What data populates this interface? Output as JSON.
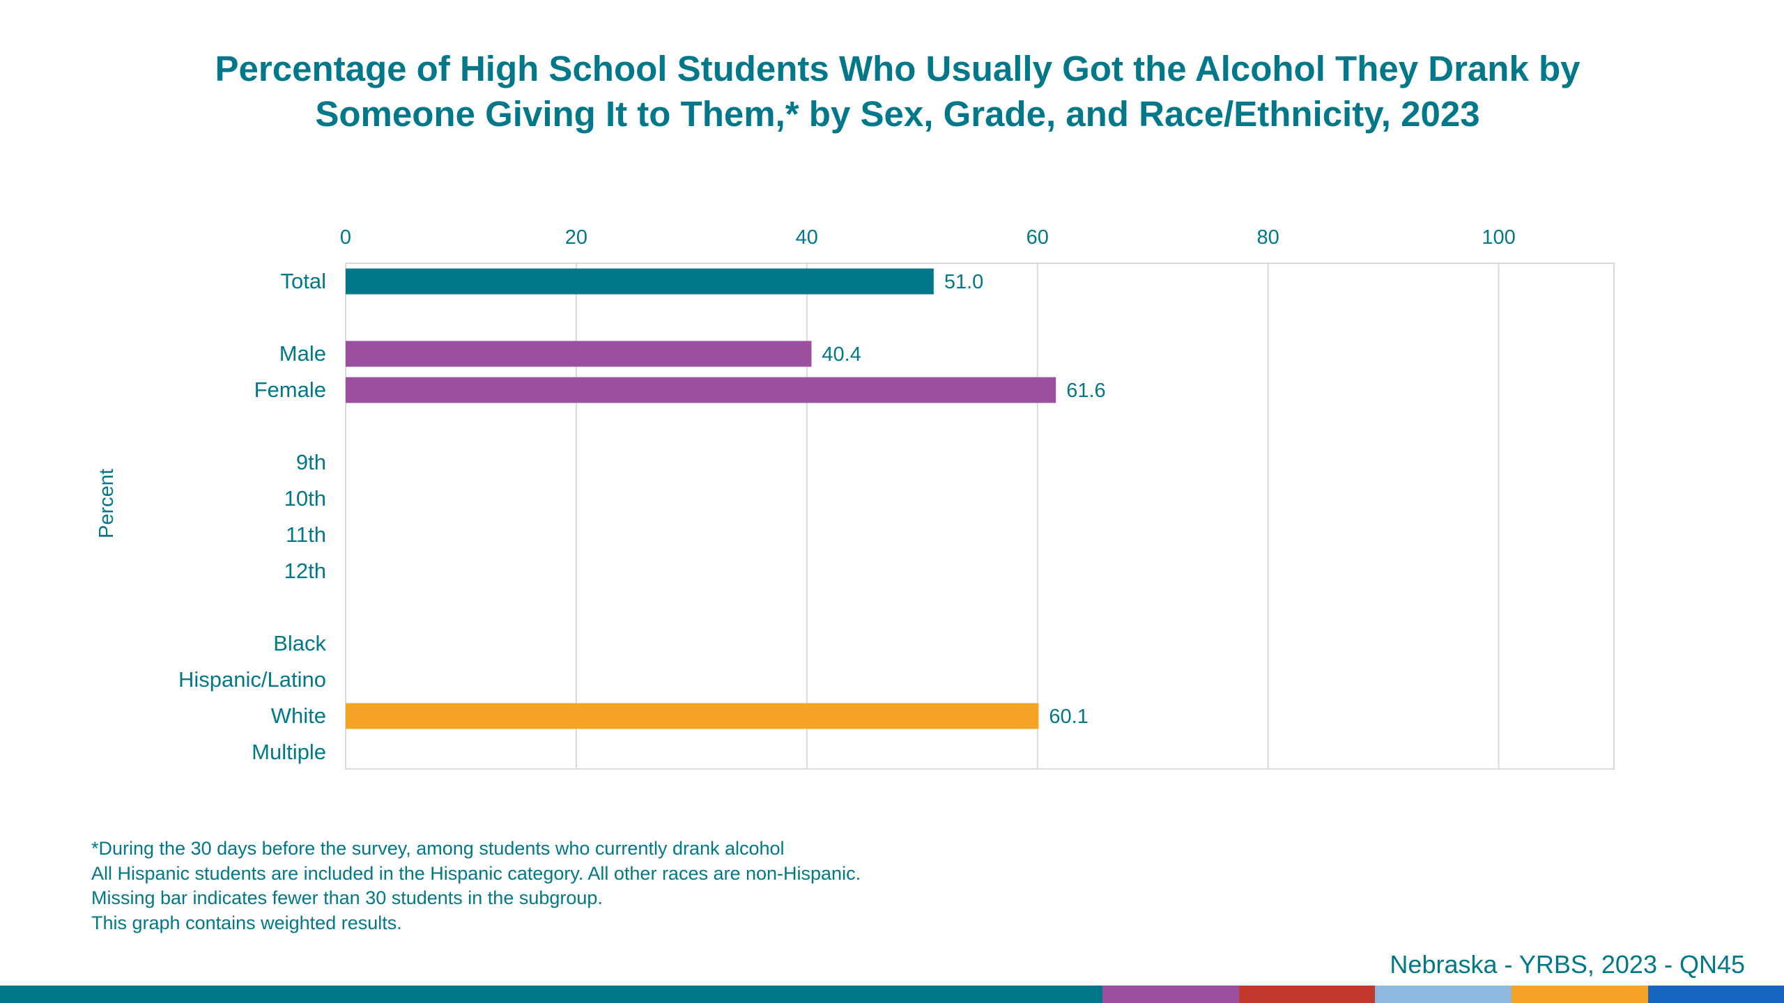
{
  "title_line1": "Percentage of High School Students Who Usually Got the Alcohol They Drank by",
  "title_line2": "Someone Giving It to Them,* by Sex, Grade, and Race/Ethnicity, 2023",
  "chart_data": {
    "type": "bar",
    "orientation": "horizontal",
    "title": "Percentage of High School Students Who Usually Got the Alcohol They Drank by Someone Giving It to Them,* by Sex, Grade, and Race/Ethnicity, 2023",
    "xlabel": "",
    "ylabel": "Percent",
    "xlim": [
      0,
      110
    ],
    "xticks": [
      0,
      20,
      40,
      60,
      80,
      100
    ],
    "xtick_labels": [
      "0",
      "20",
      "40",
      "60",
      "80",
      "100"
    ],
    "xaxis_position": "top",
    "grid": true,
    "categories": [
      "Total",
      "Male",
      "Female",
      "9th",
      "10th",
      "11th",
      "12th",
      "Black",
      "Hispanic/Latino",
      "White",
      "Multiple"
    ],
    "groups": [
      "Total",
      "Sex",
      "Sex",
      "Grade",
      "Grade",
      "Grade",
      "Grade",
      "Race/Ethnicity",
      "Race/Ethnicity",
      "Race/Ethnicity",
      "Race/Ethnicity"
    ],
    "values": [
      51.0,
      40.4,
      61.6,
      null,
      null,
      null,
      null,
      null,
      null,
      60.1,
      null
    ],
    "value_labels": [
      "51.0",
      "40.4",
      "61.6",
      "",
      "",
      "",
      "",
      "",
      "",
      "60.1",
      ""
    ],
    "colors": [
      "#00788a",
      "#9b4f9f",
      "#9b4f9f",
      "#0081a6",
      "#0081a6",
      "#0081a6",
      "#0081a6",
      "#f5a324",
      "#f5a324",
      "#f5a324",
      "#f5a324"
    ]
  },
  "footnotes": [
    "*During the 30 days before the survey, among students who currently drank alcohol",
    "All Hispanic students are included in the Hispanic category.  All other races are non-Hispanic.",
    "Missing bar indicates fewer than 30 students in the subgroup.",
    "This graph contains weighted results."
  ],
  "source": "Nebraska - YRBS, 2023 - QN45",
  "footer_colors": [
    "#00788a",
    "#9b4f9f",
    "#c0392b",
    "#8fb8de",
    "#f5a324",
    "#1565c0"
  ],
  "text_color": "#00788a"
}
